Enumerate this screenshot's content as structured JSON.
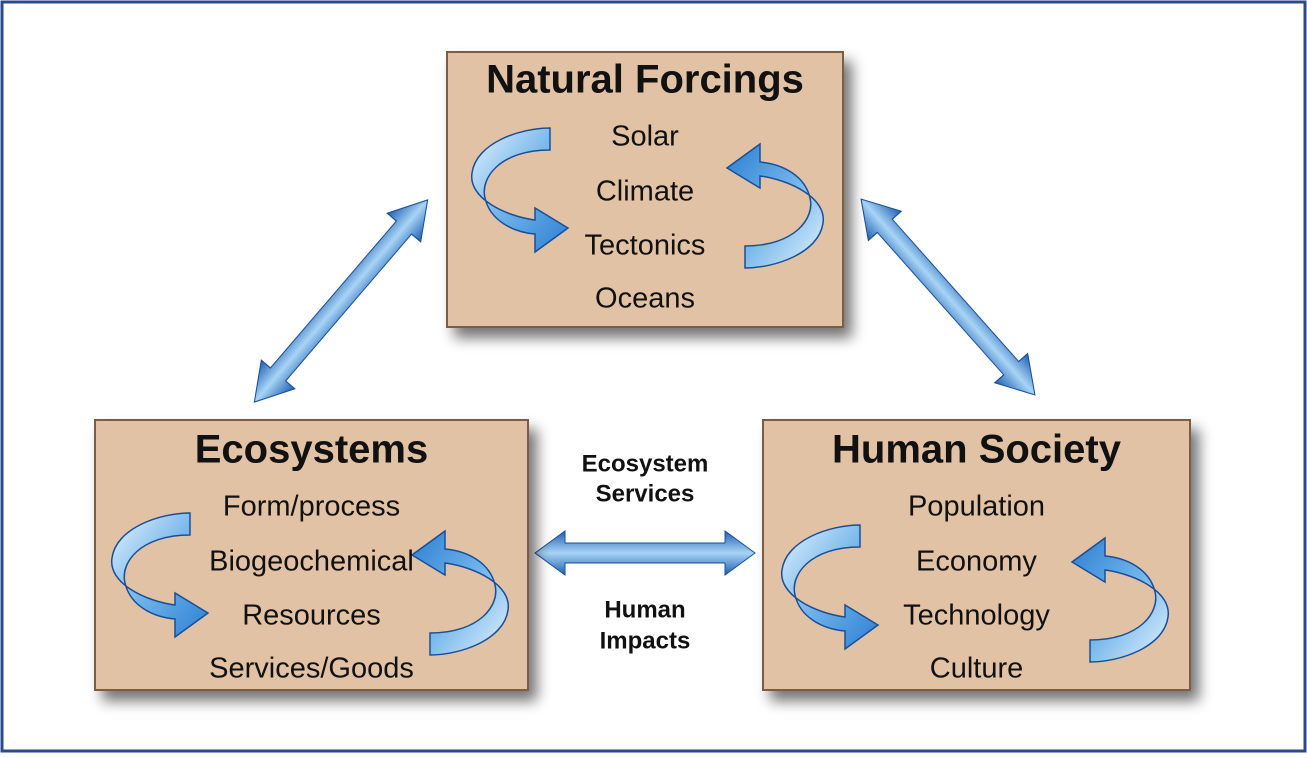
{
  "diagram": {
    "nodes": [
      {
        "title": "Natural Forcings",
        "items": [
          "Solar",
          "Climate",
          "Tectonics",
          "Oceans"
        ]
      },
      {
        "title": "Ecosystems",
        "items": [
          "Form/process",
          "Biogeochemical",
          "Resources",
          "Services/Goods"
        ]
      },
      {
        "title": "Human Society",
        "items": [
          "Population",
          "Economy",
          "Technology",
          "Culture"
        ]
      }
    ],
    "center_labels": {
      "upper": [
        "Ecosystem",
        "Services"
      ],
      "lower": [
        "Human",
        "Impacts"
      ]
    }
  }
}
